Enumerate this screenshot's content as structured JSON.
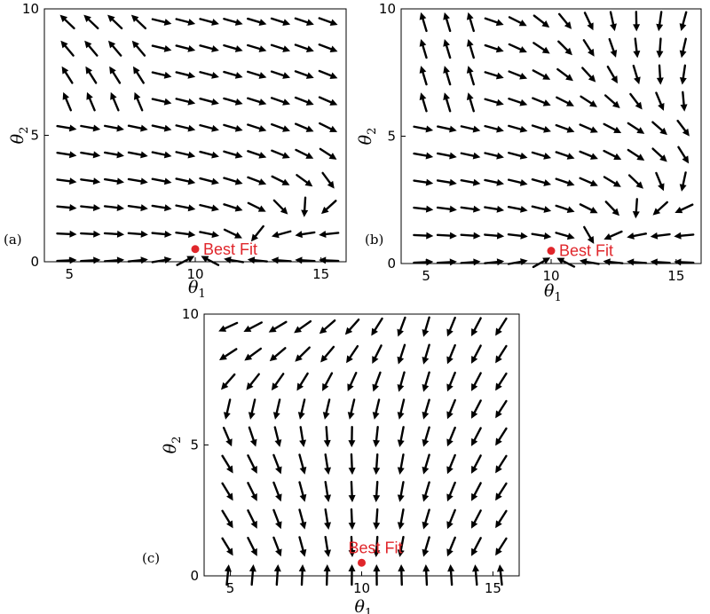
{
  "chart_data": [
    {
      "type": "quiver",
      "panel_label": "(a)",
      "xlabel_base": "θ",
      "xlabel_sub": "1",
      "ylabel_base": "θ",
      "ylabel_sub": "2",
      "xlim": [
        4,
        16
      ],
      "ylim": [
        0,
        10
      ],
      "x_ticks": [
        {
          "value": 5,
          "label": "5"
        },
        {
          "value": 10,
          "label": "10"
        },
        {
          "value": 15,
          "label": "15"
        }
      ],
      "y_ticks": [
        {
          "value": 0,
          "label": "0"
        },
        {
          "value": 5,
          "label": "5"
        },
        {
          "value": 10,
          "label": "10"
        }
      ],
      "grid": false,
      "best_fit": {
        "x": 10,
        "y": 0.5,
        "label": "Best Fit"
      },
      "field": "a"
    },
    {
      "type": "quiver",
      "panel_label": "(b)",
      "xlabel_base": "θ",
      "xlabel_sub": "1",
      "ylabel_base": "θ",
      "ylabel_sub": "2",
      "xlim": [
        4,
        16
      ],
      "ylim": [
        0,
        10
      ],
      "x_ticks": [
        {
          "value": 5,
          "label": "5"
        },
        {
          "value": 10,
          "label": "10"
        },
        {
          "value": 15,
          "label": "15"
        }
      ],
      "y_ticks": [
        {
          "value": 0,
          "label": "0"
        },
        {
          "value": 5,
          "label": "5"
        },
        {
          "value": 10,
          "label": "10"
        }
      ],
      "grid": false,
      "best_fit": {
        "x": 10,
        "y": 0.5,
        "label": "Best Fit"
      },
      "field": "b"
    },
    {
      "type": "quiver",
      "panel_label": "(c)",
      "xlabel_base": "θ",
      "xlabel_sub": "1",
      "ylabel_base": "θ",
      "ylabel_sub": "2",
      "xlim": [
        4,
        16
      ],
      "ylim": [
        0,
        10
      ],
      "x_ticks": [
        {
          "value": 5,
          "label": "5"
        },
        {
          "value": 10,
          "label": "10"
        },
        {
          "value": 15,
          "label": "15"
        }
      ],
      "y_ticks": [
        {
          "value": 0,
          "label": "0"
        },
        {
          "value": 5,
          "label": "5"
        },
        {
          "value": 10,
          "label": "10"
        }
      ],
      "grid": false,
      "best_fit": {
        "x": 10,
        "y": 0.5,
        "label": "Best Fit"
      },
      "field": "c"
    }
  ]
}
